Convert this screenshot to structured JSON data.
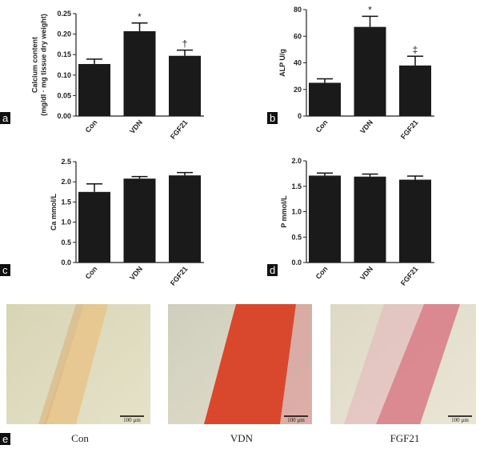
{
  "chart_data": [
    {
      "type": "bar",
      "panel": "a",
      "ylabel": [
        "Calcium content",
        "(mg/dl · mg tissue dry weight)"
      ],
      "categories": [
        "Con",
        "VDN",
        "FGF21"
      ],
      "values": [
        0.127,
        0.207,
        0.147
      ],
      "errors": [
        0.012,
        0.02,
        0.014
      ],
      "annotations": [
        null,
        "*",
        "†"
      ],
      "color": "#1a1a1a",
      "ylim": [
        0,
        0.25
      ],
      "yticks": [
        {
          "value": 0,
          "label": "0.00"
        },
        {
          "value": 0.05,
          "label": "0.05"
        },
        {
          "value": 0.1,
          "label": "0.10"
        },
        {
          "value": 0.15,
          "label": "0.15"
        },
        {
          "value": 0.2,
          "label": "0.20"
        },
        {
          "value": 0.25,
          "label": "0.25"
        }
      ]
    },
    {
      "type": "bar",
      "panel": "b",
      "ylabel": [
        "ALP U/g"
      ],
      "categories": [
        "Con",
        "VDN",
        "FGF21"
      ],
      "values": [
        25,
        67,
        38
      ],
      "errors": [
        3,
        8,
        7
      ],
      "annotations": [
        null,
        "*",
        "‡"
      ],
      "color": "#1a1a1a",
      "ylim": [
        0,
        80
      ],
      "yticks": [
        0,
        20,
        40,
        60,
        80
      ]
    },
    {
      "type": "bar",
      "panel": "c",
      "ylabel": [
        "Ca mmol/L"
      ],
      "categories": [
        "Con",
        "VDN",
        "FGF21"
      ],
      "values": [
        1.75,
        2.08,
        2.16
      ],
      "errors": [
        0.2,
        0.05,
        0.07
      ],
      "color": "#1a1a1a",
      "ylim": [
        0,
        2.5
      ],
      "yticks": [
        {
          "value": 0,
          "label": "0.0"
        },
        0.5,
        {
          "value": 1,
          "label": "1.0"
        },
        1.5,
        {
          "value": 2,
          "label": "2.0"
        },
        2.5
      ]
    },
    {
      "type": "bar",
      "panel": "d",
      "ylabel": [
        "P mmol/L"
      ],
      "categories": [
        "Con",
        "VDN",
        "FGF21"
      ],
      "values": [
        1.71,
        1.69,
        1.63
      ],
      "errors": [
        0.05,
        0.05,
        0.07
      ],
      "color": "#1a1a1a",
      "ylim": [
        0,
        2
      ],
      "yticks": [
        {
          "value": 0,
          "label": "0.0"
        },
        0.5,
        {
          "value": 1,
          "label": "1.0"
        },
        1.5,
        {
          "value": 2,
          "label": "2.0"
        }
      ]
    }
  ],
  "micrographs": {
    "panel": "e",
    "images": [
      {
        "caption": "Con",
        "scale_bar": "100 µm"
      },
      {
        "caption": "VDN",
        "scale_bar": "100 µm"
      },
      {
        "caption": "FGF21",
        "scale_bar": "100 µm"
      }
    ]
  }
}
